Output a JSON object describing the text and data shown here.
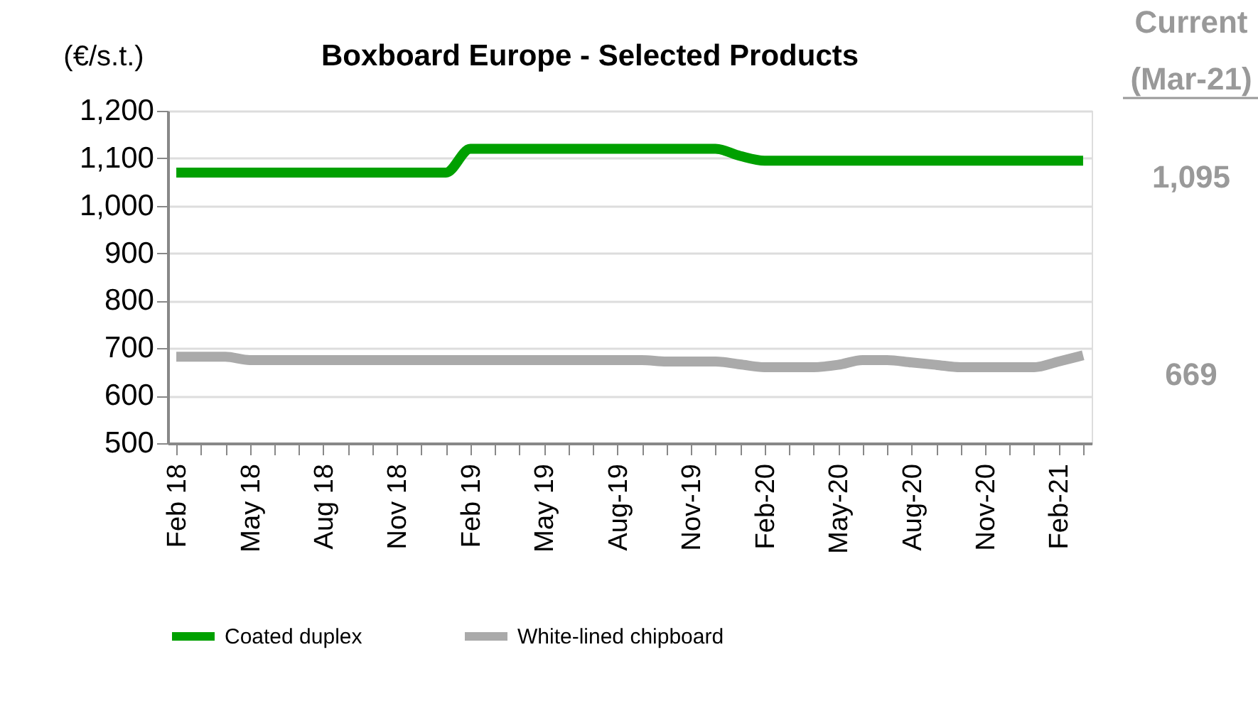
{
  "chart_data": {
    "type": "line",
    "title": "Boxboard Europe - Selected Products",
    "ylabel": "(€/s.t.)",
    "categories": [
      "Feb 18",
      null,
      null,
      "May 18",
      null,
      null,
      "Aug 18",
      null,
      null,
      "Nov 18",
      null,
      null,
      "Feb 19",
      null,
      null,
      "May 19",
      null,
      null,
      "Aug-19",
      null,
      null,
      "Nov-19",
      null,
      null,
      "Feb-20",
      null,
      null,
      "May-20",
      null,
      null,
      "Aug-20",
      null,
      null,
      "Nov-20",
      null,
      null,
      "Feb-21",
      null
    ],
    "series": [
      {
        "name": "Coated duplex",
        "color": "#00a000",
        "values": [
          1070,
          1070,
          1070,
          1070,
          1070,
          1070,
          1070,
          1070,
          1070,
          1070,
          1070,
          1070,
          1120,
          1120,
          1120,
          1120,
          1120,
          1120,
          1120,
          1120,
          1120,
          1120,
          1120,
          1105,
          1095,
          1095,
          1095,
          1095,
          1095,
          1095,
          1095,
          1095,
          1095,
          1095,
          1095,
          1095,
          1095,
          1095
        ]
      },
      {
        "name": "White-lined chipboard",
        "color": "#aaaaaa",
        "values": [
          682,
          682,
          682,
          675,
          675,
          675,
          675,
          675,
          675,
          675,
          675,
          675,
          675,
          675,
          675,
          675,
          675,
          675,
          675,
          675,
          672,
          672,
          672,
          666,
          660,
          660,
          660,
          665,
          675,
          675,
          670,
          665,
          660,
          660,
          660,
          660,
          672,
          685
        ]
      }
    ],
    "ylim": [
      500,
      1200
    ],
    "yticks": [
      500,
      600,
      700,
      800,
      900,
      {
        "value": 1000,
        "label": "1,000"
      },
      {
        "value": 1100,
        "label": "1,100"
      },
      {
        "value": 1200,
        "label": "1,200"
      }
    ],
    "grid": "y",
    "legend": "bottom",
    "marker": "none",
    "line_style": "solid",
    "annotations": [
      "Current",
      "(Mar-21)",
      "1,095",
      "669"
    ]
  }
}
